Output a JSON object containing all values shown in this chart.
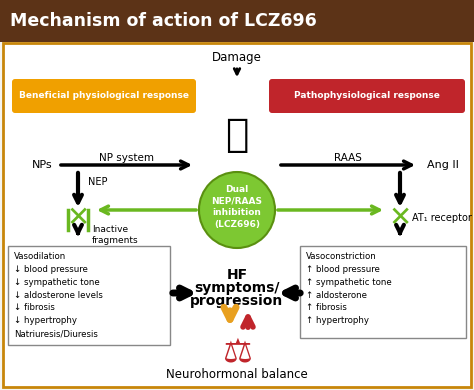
{
  "title": "Mechanism of action of LCZ696",
  "title_bg": "#5c3317",
  "title_color": "#ffffff",
  "bg_color": "#f5f5f0",
  "border_color": "#c8860a",
  "beneficial_box_color": "#f0a000",
  "pathophys_box_color": "#c0252b",
  "green_circle_color": "#7dc832",
  "green_arrow_color": "#6ab820",
  "left_box_text": "Vasodilation\n↓ blood pressure\n↓ sympathetic tone\n↓ aldosterone levels\n↓ fibrosis\n↓ hypertrophy\nNatriuresis/Diuresis",
  "right_box_text": "Vasoconstriction\n↑ blood pressure\n↑ sympathetic tone\n↑ aldosterone\n↑ fibrosis\n↑ hypertrophy",
  "orange_arrow_color": "#e8a020",
  "red_arrow_color": "#c0252b"
}
